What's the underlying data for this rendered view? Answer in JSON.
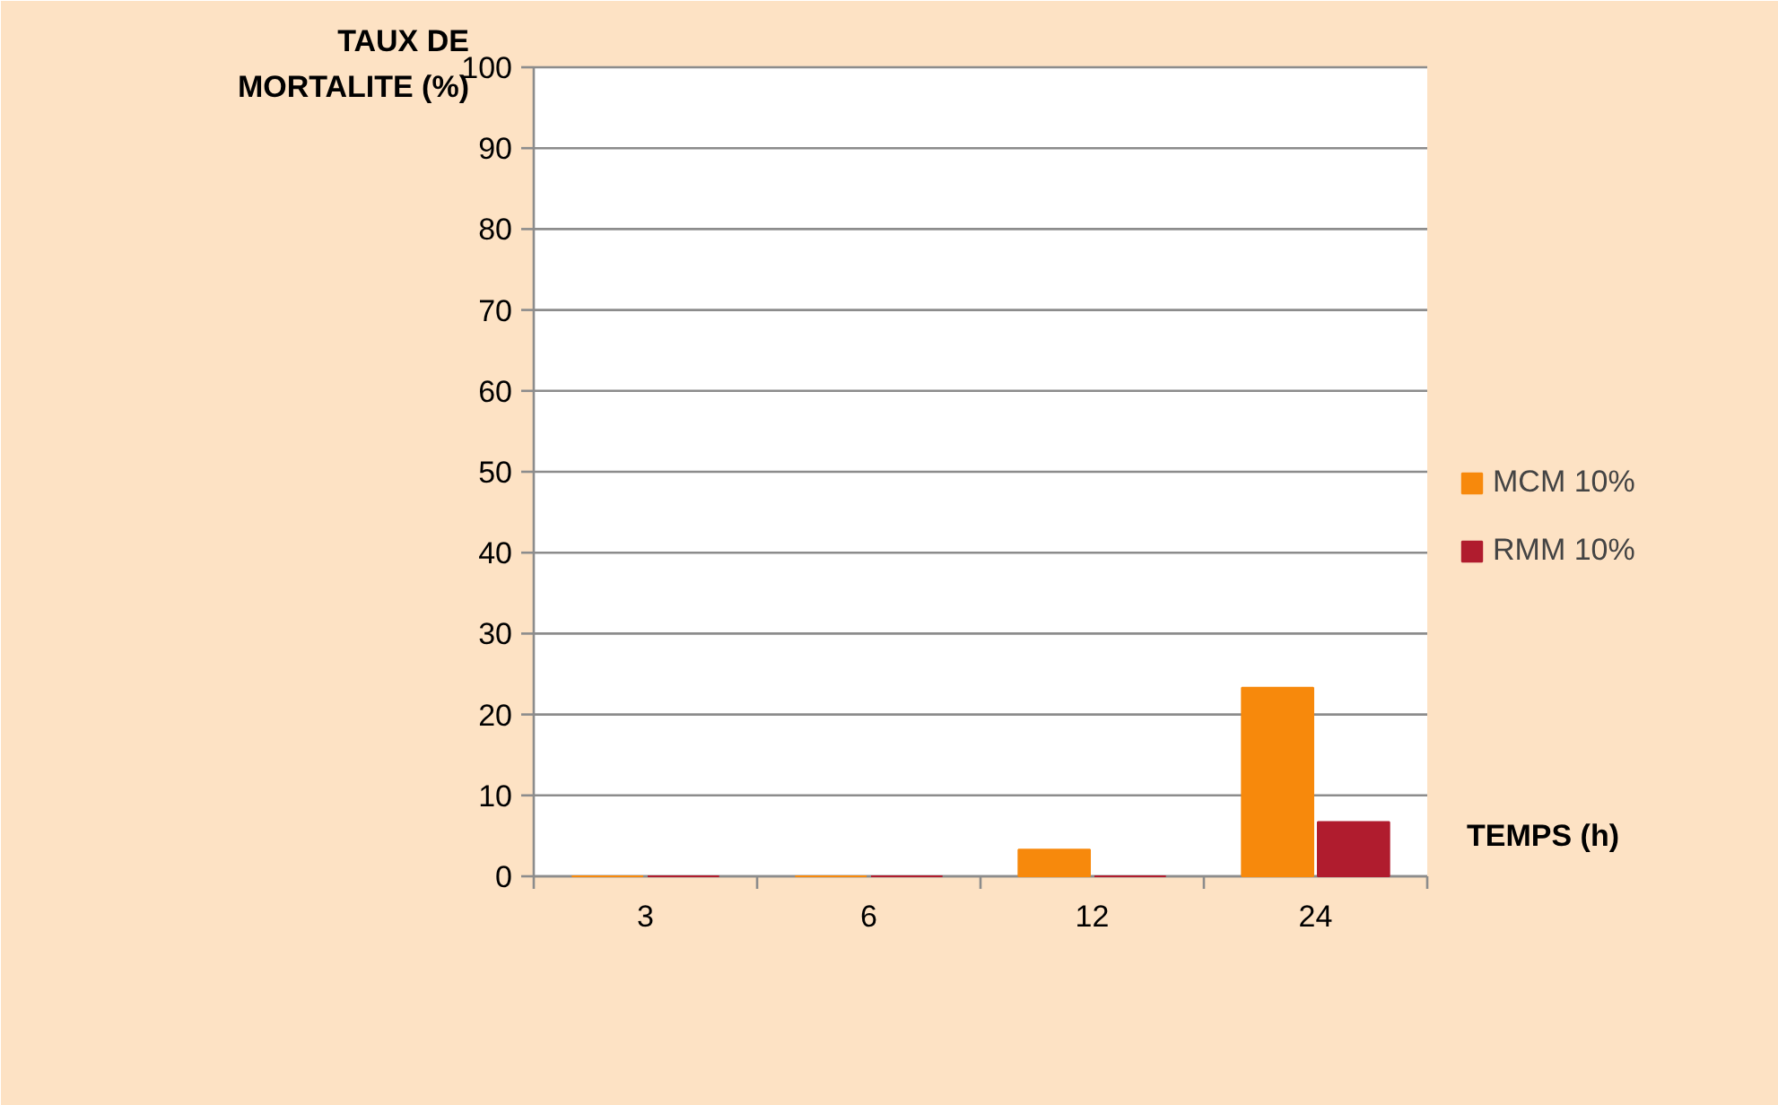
{
  "chart_data": {
    "type": "bar",
    "xlabel": "TEMPS (h)",
    "ylabel": "TAUX DE\nMORTALITE (%)",
    "categories": [
      "3",
      "6",
      "12",
      "24"
    ],
    "series": [
      {
        "name": "MCM 10%",
        "color": "#f7890c",
        "values": [
          0,
          0,
          3.3,
          23.3
        ]
      },
      {
        "name": "RMM 10%",
        "color": "#b01c2e",
        "values": [
          0,
          0,
          0,
          6.7
        ]
      }
    ],
    "ylim": [
      0,
      100
    ],
    "yticks": [
      0,
      10,
      20,
      30,
      40,
      50,
      60,
      70,
      80,
      90,
      100
    ],
    "grid": "y",
    "legend": "right"
  }
}
